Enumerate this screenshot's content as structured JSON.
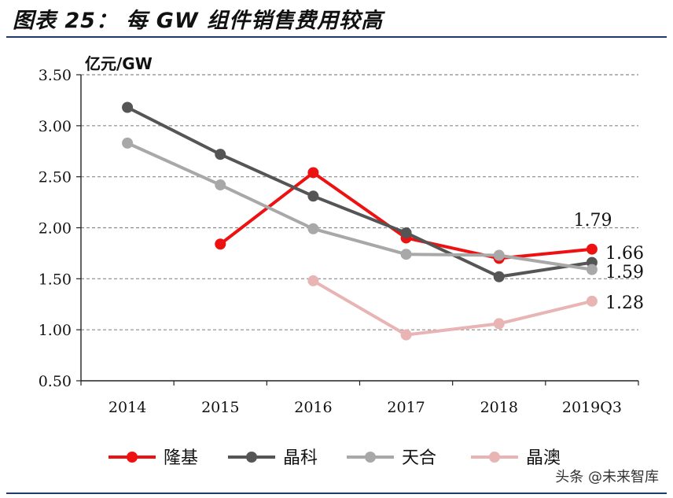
{
  "title": "图表 25： 每 GW 组件销售费用较高",
  "watermark": "头条 @未来智库",
  "chart_data": {
    "type": "line",
    "title": "图表 25： 每 GW 组件销售费用较高",
    "ylabel": "亿元/GW",
    "xlabel": "",
    "categories": [
      "2014",
      "2015",
      "2016",
      "2017",
      "2018",
      "2019Q3"
    ],
    "ylim": [
      0.5,
      3.5
    ],
    "ytick_labels": [
      "0.50",
      "1.00",
      "1.50",
      "2.00",
      "2.50",
      "3.00",
      "3.50"
    ],
    "ytick_values": [
      0.5,
      1.0,
      1.5,
      2.0,
      2.5,
      3.0,
      3.5
    ],
    "grid": "horizontal dashed",
    "legend_position": "bottom",
    "series": [
      {
        "name": "隆基",
        "color": "#ee1111",
        "values": [
          null,
          1.84,
          2.54,
          1.9,
          1.7,
          1.79
        ],
        "end_label": "1.79"
      },
      {
        "name": "晶科",
        "color": "#555555",
        "values": [
          3.18,
          2.72,
          2.31,
          1.95,
          1.52,
          1.66
        ],
        "end_label": "1.66"
      },
      {
        "name": "天合",
        "color": "#a8a8a8",
        "values": [
          2.83,
          2.42,
          1.99,
          1.74,
          1.73,
          1.59
        ],
        "end_label": "1.59"
      },
      {
        "name": "晶澳",
        "color": "#e8b4b4",
        "values": [
          null,
          null,
          1.48,
          0.95,
          1.06,
          1.28
        ],
        "end_label": "1.28"
      }
    ]
  }
}
